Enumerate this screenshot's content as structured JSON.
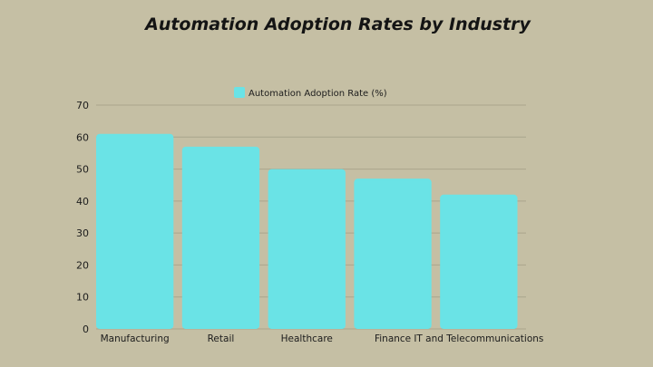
{
  "chart_data": {
    "type": "bar",
    "title": "Automation Adoption Rates by Industry",
    "categories": [
      "Manufacturing",
      "Retail",
      "Healthcare",
      "Finance",
      "IT and Telecommunications"
    ],
    "series": [
      {
        "name": "Automation Adoption Rate (%)",
        "values": [
          61,
          57,
          50,
          47,
          42
        ],
        "color": "#6ae3e6"
      }
    ],
    "ylim": [
      0,
      70
    ],
    "yticks": [
      0,
      10,
      20,
      30,
      40,
      50,
      60,
      70
    ],
    "grid": true,
    "legend": "top-center",
    "colors": {
      "background": "#c5bfa4",
      "gridline": "#aaa58c"
    }
  }
}
